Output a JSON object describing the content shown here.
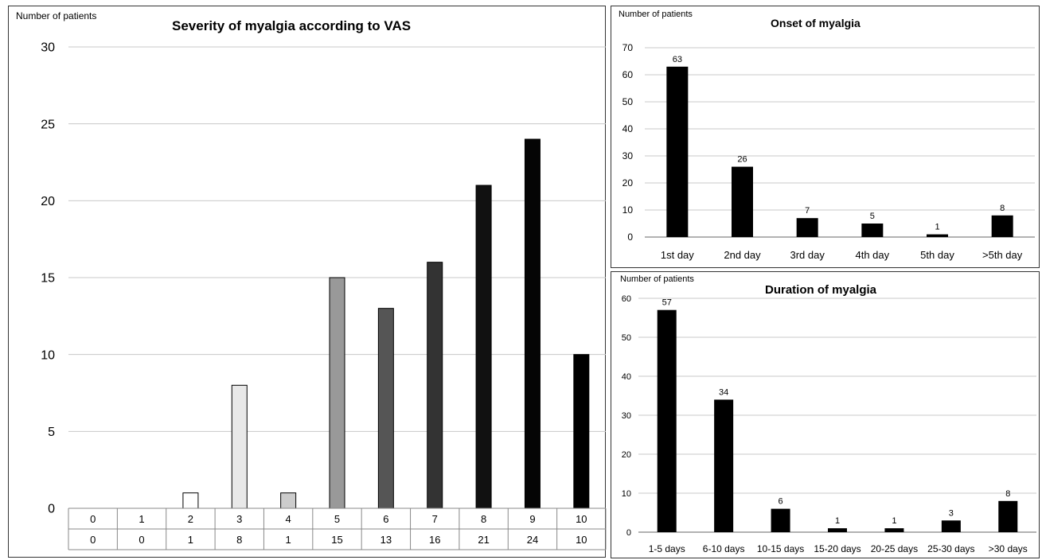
{
  "chart_data": [
    {
      "type": "bar",
      "title": "Severity of myalgia according to VAS",
      "ylabel": "Number of patients",
      "xlabel": "",
      "ylim": [
        0,
        30
      ],
      "yticks": [
        0,
        5,
        10,
        15,
        20,
        25,
        30
      ],
      "categories": [
        "0",
        "1",
        "2",
        "3",
        "4",
        "5",
        "6",
        "7",
        "8",
        "9",
        "10"
      ],
      "values": [
        0,
        0,
        1,
        8,
        1,
        15,
        13,
        16,
        21,
        24,
        10
      ],
      "table_row": [
        "0",
        "0",
        "1",
        "8",
        "1",
        "15",
        "13",
        "16",
        "21",
        "24",
        "10"
      ],
      "bar_colors": [
        "#ffffff",
        "#ffffff",
        "#ffffff",
        "#e8e8e8",
        "#cccccc",
        "#999999",
        "#555555",
        "#333333",
        "#111111",
        "#050505",
        "#000000"
      ],
      "grid": true,
      "legend": "none"
    },
    {
      "type": "bar",
      "title": "Onset of myalgia",
      "ylabel": "Number of patients",
      "xlabel": "",
      "ylim": [
        0,
        70
      ],
      "yticks": [
        0,
        10,
        20,
        30,
        40,
        50,
        60,
        70
      ],
      "categories": [
        "1st day",
        "2nd day",
        "3rd day",
        "4th day",
        "5th day",
        ">5th day"
      ],
      "values": [
        63,
        26,
        7,
        5,
        1,
        8
      ],
      "data_labels": [
        "63",
        "26",
        "7",
        "5",
        "1",
        "8"
      ],
      "bar_color": "#000000",
      "grid": true,
      "legend": "none"
    },
    {
      "type": "bar",
      "title": "Duration of myalgia",
      "ylabel": "Number of patients",
      "xlabel": "",
      "ylim": [
        0,
        60
      ],
      "yticks": [
        0,
        10,
        20,
        30,
        40,
        50,
        60
      ],
      "categories": [
        "1-5 days",
        "6-10 days",
        "10-15 days",
        "15-20 days",
        "20-25 days",
        "25-30 days",
        ">30 days"
      ],
      "values": [
        57,
        34,
        6,
        1,
        1,
        3,
        8
      ],
      "data_labels": [
        "57",
        "34",
        "6",
        "1",
        "1",
        "3",
        "8"
      ],
      "bar_color": "#000000",
      "grid": true,
      "legend": "none"
    }
  ]
}
